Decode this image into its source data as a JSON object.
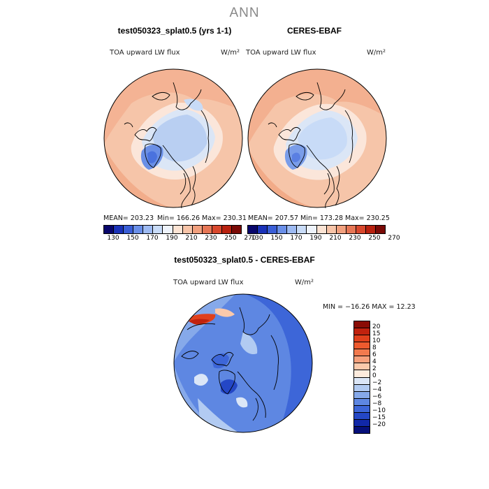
{
  "figure": {
    "title": "ANN"
  },
  "panels": [
    {
      "title": "test050323_splat0.5 (yrs 1-1)",
      "variable": "TOA upward LW flux",
      "units": "W/m²",
      "stats": {
        "mean_label": "MEAN= 203.23",
        "min_label": "Min= 166.26",
        "max_label": "Max= 230.31"
      }
    },
    {
      "title": "CERES-EBAF",
      "variable": "TOA upward LW flux",
      "units": "W/m²",
      "stats": {
        "mean_label": "MEAN= 207.57",
        "min_label": "Min= 173.28",
        "max_label": "Max= 230.25"
      }
    },
    {
      "title": "test050323_splat0.5 - CERES-EBAF",
      "variable": "TOA upward LW flux",
      "units": "W/m²",
      "stats": {
        "minmax_label": "MIN = −16.26 MAX =  12.23"
      }
    }
  ],
  "colorbar_abs": {
    "tick_labels": [
      "130",
      "150",
      "170",
      "190",
      "210",
      "230",
      "250",
      "270"
    ],
    "colors": [
      "#08066b",
      "#1a32b8",
      "#3a5ed6",
      "#6a8fe8",
      "#9dbaf2",
      "#c8dbf7",
      "#eef3fb",
      "#fbe3d3",
      "#f7c4a8",
      "#f1a07e",
      "#e67655",
      "#d8482d",
      "#b8210f",
      "#7a0a06"
    ]
  },
  "colorbar_diff": {
    "tick_labels": [
      "20",
      "15",
      "10",
      "8",
      "6",
      "4",
      "2",
      "0",
      "−2",
      "−4",
      "−6",
      "−8",
      "−10",
      "−15",
      "−20"
    ],
    "colors": [
      "#8a0c05",
      "#c1220e",
      "#e0401c",
      "#ee5a2e",
      "#f27a4e",
      "#f6a07c",
      "#fbc9ab",
      "#fdebdd",
      "#dbe6f7",
      "#b2cbf2",
      "#86a9ea",
      "#5e87e2",
      "#3d66d8",
      "#2447c6",
      "#1128a8",
      "#06107a"
    ]
  }
}
